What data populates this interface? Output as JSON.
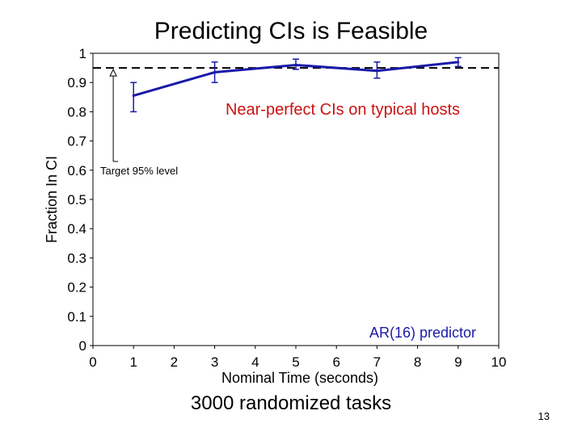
{
  "slide": {
    "title": "Predicting CIs is Feasible",
    "caption": "3000 randomized tasks",
    "page_number": "13"
  },
  "colors": {
    "series": "#1a1aa8",
    "target_line": "#000000",
    "callout": "#cc1111",
    "predictor_label": "#1a1aa8"
  },
  "chart_data": {
    "type": "line",
    "xlabel": "Nominal Time (seconds)",
    "ylabel": "Fraction In CI",
    "xlim": [
      0,
      10
    ],
    "ylim": [
      0,
      1
    ],
    "x_ticks": [
      "0",
      "1",
      "2",
      "3",
      "4",
      "5",
      "6",
      "7",
      "8",
      "9",
      "10"
    ],
    "y_ticks": [
      "0",
      "0.1",
      "0.2",
      "0.3",
      "0.4",
      "0.5",
      "0.6",
      "0.7",
      "0.8",
      "0.9",
      "1"
    ],
    "grid": false,
    "series": [
      {
        "x": [
          1,
          3,
          5,
          7,
          9
        ],
        "values": [
          0.855,
          0.935,
          0.96,
          0.94,
          0.97
        ],
        "err_low": [
          0.8,
          0.9,
          0.945,
          0.915,
          0.955
        ],
        "err_high": [
          0.9,
          0.97,
          0.98,
          0.97,
          0.985
        ]
      }
    ],
    "target_level": 0.95,
    "annotations": {
      "target": "Target 95% level",
      "callout": "Near-perfect CIs on typical hosts",
      "predictor": "AR(16) predictor"
    }
  }
}
